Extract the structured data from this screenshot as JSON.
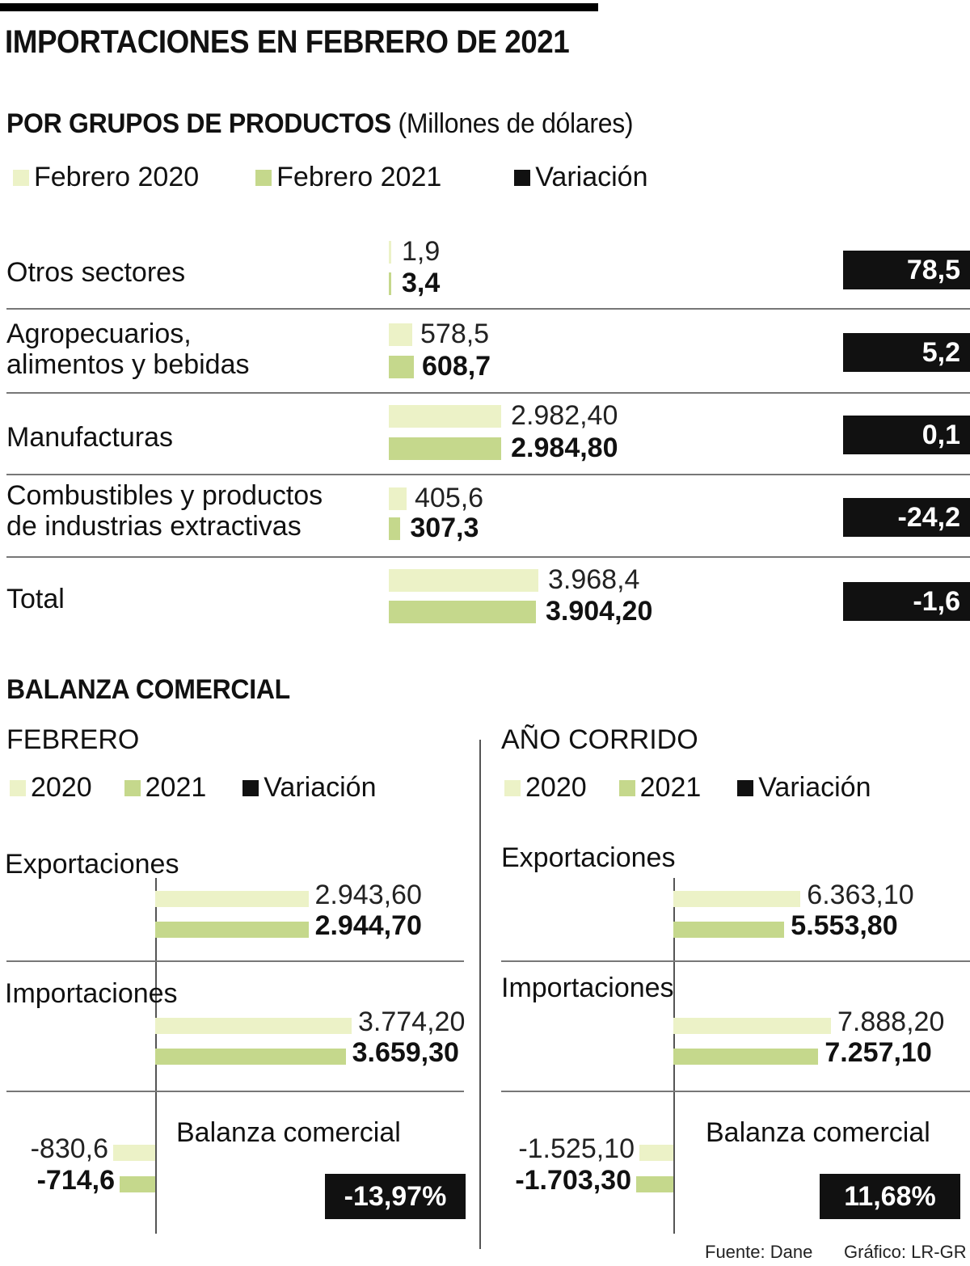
{
  "title": "IMPORTACIONES EN FEBRERO DE 2021",
  "colors": {
    "y2020": "#ecf2c7",
    "y2021": "#c5d88c",
    "variation": "#111111"
  },
  "chart_data": [
    {
      "type": "bar",
      "title": "POR GRUPOS DE PRODUCTOS",
      "unit": "(Millones de dólares)",
      "legend": [
        "Febrero 2020",
        "Febrero 2021",
        "Variación"
      ],
      "categories": [
        "Otros sectores",
        "Agropecuarios, alimentos y bebidas",
        "Manufacturas",
        "Combustibles y productos de industrias extractivas",
        "Total"
      ],
      "category_lines": [
        [
          "Otros sectores"
        ],
        [
          "Agropecuarios,",
          "alimentos y bebidas"
        ],
        [
          "Manufacturas"
        ],
        [
          "Combustibles y productos",
          "de industrias extractivas"
        ],
        [
          "Total"
        ]
      ],
      "series": [
        {
          "name": "Febrero 2020",
          "values": [
            1.9,
            578.5,
            2982.4,
            405.6,
            3968.4
          ],
          "labels": [
            "1,9",
            "578,5",
            "2.982,40",
            "405,6",
            "3.968,4"
          ]
        },
        {
          "name": "Febrero 2021",
          "values": [
            3.4,
            608.7,
            2984.8,
            307.3,
            3904.2
          ],
          "labels": [
            "3,4",
            "608,7",
            "2.984,80",
            "307,3",
            "3.904,20"
          ]
        }
      ],
      "variation": [
        "78,5",
        "5,2",
        "0,1",
        "-24,2",
        "-1,6"
      ]
    },
    {
      "type": "bar",
      "section": "BALANZA COMERCIAL",
      "title": "FEBRERO",
      "legend": [
        "2020",
        "2021",
        "Variación"
      ],
      "categories": [
        "Exportaciones",
        "Importaciones",
        "Balanza comercial"
      ],
      "series": [
        {
          "name": "2020",
          "values": [
            2943.6,
            3774.2,
            -830.6
          ],
          "labels": [
            "2.943,60",
            "3.774,20",
            "-830,6"
          ]
        },
        {
          "name": "2021",
          "values": [
            2944.7,
            3659.3,
            -714.6
          ],
          "labels": [
            "2.944,70",
            "3.659,30",
            "-714,6"
          ]
        }
      ],
      "variation": "-13,97%"
    },
    {
      "type": "bar",
      "title": "AÑO CORRIDO",
      "legend": [
        "2020",
        "2021",
        "Variación"
      ],
      "categories": [
        "Exportaciones",
        "Importaciones",
        "Balanza comercial"
      ],
      "series": [
        {
          "name": "2020",
          "values": [
            6363.1,
            7888.2,
            -1525.1
          ],
          "labels": [
            "6.363,10",
            "7.888,20",
            "-1.525,10"
          ]
        },
        {
          "name": "2021",
          "values": [
            5553.8,
            7257.1,
            -1703.3
          ],
          "labels": [
            "5.553,80",
            "7.257,10",
            "-1.703,30"
          ]
        }
      ],
      "variation": "11,68%"
    }
  ],
  "footer": {
    "source": "Fuente: Dane",
    "credit": "Gráfico: LR-GR"
  }
}
